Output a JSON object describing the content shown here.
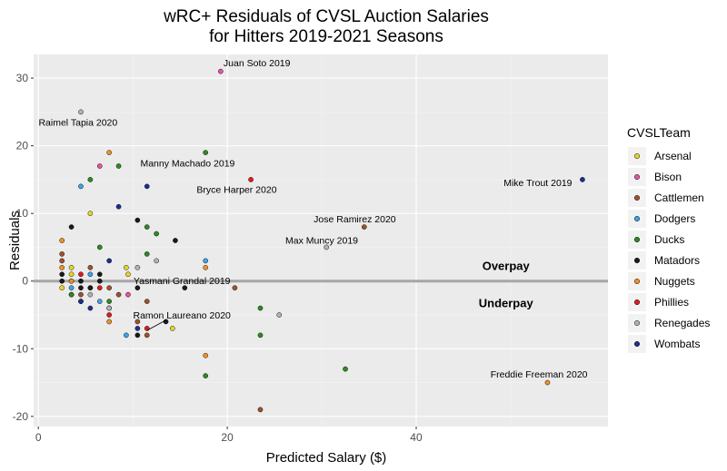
{
  "chart_data": {
    "type": "scatter",
    "title_lines": [
      "wRC+ Residuals of CVSL Auction Salaries",
      "for Hitters 2019-2021 Seasons"
    ],
    "xlabel": "Predicted Salary ($)",
    "ylabel": "Residuals",
    "xlim": [
      -0.5,
      60.3
    ],
    "ylim": [
      -21.5,
      33.5
    ],
    "x_ticks": [
      0,
      20,
      40
    ],
    "y_ticks": [
      -20,
      -10,
      0,
      10,
      20,
      30
    ],
    "grid": true,
    "reference_line_y": 0,
    "legend": {
      "title": "CVSLTeam",
      "placement": "right",
      "items": [
        {
          "name": "Arsenal",
          "color": "#e6d52a"
        },
        {
          "name": "Bison",
          "color": "#e8559e"
        },
        {
          "name": "Cattlemen",
          "color": "#a0522d"
        },
        {
          "name": "Dodgers",
          "color": "#3fa2e8"
        },
        {
          "name": "Ducks",
          "color": "#2e8b22"
        },
        {
          "name": "Matadors",
          "color": "#1a1a1a"
        },
        {
          "name": "Nuggets",
          "color": "#f0902a"
        },
        {
          "name": "Phillies",
          "color": "#e31a1c"
        },
        {
          "name": "Renegades",
          "color": "#b3b3b3"
        },
        {
          "name": "Wombats",
          "color": "#1f2f8f"
        }
      ]
    },
    "series": [
      {
        "name": "Arsenal",
        "points": [
          [
            2.5,
            -1
          ],
          [
            3.5,
            1
          ],
          [
            3.5,
            2
          ],
          [
            5.5,
            10
          ],
          [
            5.5,
            -1
          ],
          [
            9.3,
            2
          ],
          [
            14.2,
            -7
          ],
          [
            9.5,
            1
          ]
        ]
      },
      {
        "name": "Bison",
        "points": [
          [
            3.5,
            0
          ],
          [
            6.5,
            17
          ],
          [
            9.5,
            -2
          ],
          [
            3.5,
            -2
          ],
          [
            19.3,
            31
          ]
        ]
      },
      {
        "name": "Cattlemen",
        "points": [
          [
            2.5,
            4
          ],
          [
            2.5,
            3
          ],
          [
            4.5,
            -2
          ],
          [
            5.5,
            2
          ],
          [
            7.5,
            -1
          ],
          [
            8.5,
            -2
          ],
          [
            10.5,
            -6
          ],
          [
            11.5,
            -3
          ],
          [
            11.5,
            -8
          ],
          [
            20.8,
            -1
          ],
          [
            23.5,
            -19
          ],
          [
            34.5,
            8
          ]
        ]
      },
      {
        "name": "Dodgers",
        "points": [
          [
            4.5,
            14
          ],
          [
            5.5,
            1
          ],
          [
            6.5,
            -3
          ],
          [
            3.5,
            -1
          ],
          [
            9.3,
            -8
          ],
          [
            17.7,
            3
          ]
        ]
      },
      {
        "name": "Ducks",
        "points": [
          [
            5.5,
            15
          ],
          [
            6.5,
            5
          ],
          [
            8.5,
            17
          ],
          [
            11.5,
            8
          ],
          [
            12.5,
            7
          ],
          [
            11.5,
            4
          ],
          [
            17.7,
            19
          ],
          [
            7.5,
            -3
          ],
          [
            23.5,
            -4
          ],
          [
            23.5,
            -8
          ],
          [
            32.5,
            -13
          ],
          [
            17.7,
            -14
          ],
          [
            7.5,
            -4
          ],
          [
            3.5,
            -2
          ]
        ]
      },
      {
        "name": "Matadors",
        "points": [
          [
            2.5,
            1
          ],
          [
            3.5,
            8
          ],
          [
            4.5,
            -1
          ],
          [
            5.5,
            -1
          ],
          [
            6.5,
            1
          ],
          [
            10.5,
            9
          ],
          [
            10.5,
            -1
          ],
          [
            14.5,
            6
          ],
          [
            13.5,
            -6
          ],
          [
            15.5,
            -1
          ],
          [
            2.5,
            0
          ],
          [
            4.5,
            0
          ],
          [
            6.5,
            0
          ],
          [
            10.5,
            -8
          ],
          [
            4.5,
            -3
          ]
        ]
      },
      {
        "name": "Nuggets",
        "points": [
          [
            2.5,
            6
          ],
          [
            2.5,
            2
          ],
          [
            7.5,
            19
          ],
          [
            17.7,
            2
          ],
          [
            17.7,
            -11
          ],
          [
            53.9,
            -15
          ],
          [
            7.5,
            -6
          ],
          [
            3.5,
            0
          ]
        ]
      },
      {
        "name": "Phillies",
        "points": [
          [
            4.5,
            1
          ],
          [
            7.5,
            -5
          ],
          [
            22.5,
            15
          ],
          [
            11.5,
            -7
          ],
          [
            6.5,
            -1
          ]
        ]
      },
      {
        "name": "Renegades",
        "points": [
          [
            4.5,
            25
          ],
          [
            10.5,
            2
          ],
          [
            12.5,
            3
          ],
          [
            25.5,
            -5
          ],
          [
            30.5,
            5
          ],
          [
            7.5,
            -4
          ],
          [
            5.5,
            -2
          ]
        ]
      },
      {
        "name": "Wombats",
        "points": [
          [
            8.5,
            11
          ],
          [
            11.5,
            14
          ],
          [
            7.5,
            3
          ],
          [
            5.5,
            -4
          ],
          [
            4.5,
            -3
          ],
          [
            57.6,
            15
          ],
          [
            10.5,
            -7
          ]
        ]
      }
    ],
    "annotations": [
      {
        "text": "Juan Soto 2019",
        "x": 19.6,
        "y": 32.3,
        "anchor": "start"
      },
      {
        "text": "Raimel Tapia 2020",
        "x": 4.2,
        "y": 23.5,
        "anchor": "middle"
      },
      {
        "text": "Manny Machado 2019",
        "x": 15.8,
        "y": 17.5,
        "anchor": "middle"
      },
      {
        "text": "Bryce Harper 2020",
        "x": 21.0,
        "y": 13.6,
        "anchor": "middle"
      },
      {
        "text": "Mike Trout 2019",
        "x": 56.5,
        "y": 14.6,
        "anchor": "end"
      },
      {
        "text": "Jose Ramirez 2020",
        "x": 33.5,
        "y": 9.2,
        "anchor": "middle"
      },
      {
        "text": "Max Muncy 2019",
        "x": 30.0,
        "y": 6.1,
        "anchor": "middle"
      },
      {
        "text": "Yasmani Grandal 2019",
        "x": 15.2,
        "y": 0.1,
        "anchor": "middle"
      },
      {
        "text": "Ramon Laureano 2020",
        "x": 15.2,
        "y": -5.0,
        "anchor": "middle"
      },
      {
        "text": "Freddie Freeman 2020",
        "x": 53.0,
        "y": -13.7,
        "anchor": "middle"
      }
    ],
    "region_labels": [
      {
        "text": "Overpay",
        "x": 49.5,
        "y": 2.3
      },
      {
        "text": "Underpay",
        "x": 49.5,
        "y": -3.2
      }
    ],
    "leader_lines": [
      {
        "x1": 13.6,
        "y1": -5.7,
        "x2": 11.5,
        "y2": -7.3
      }
    ]
  }
}
